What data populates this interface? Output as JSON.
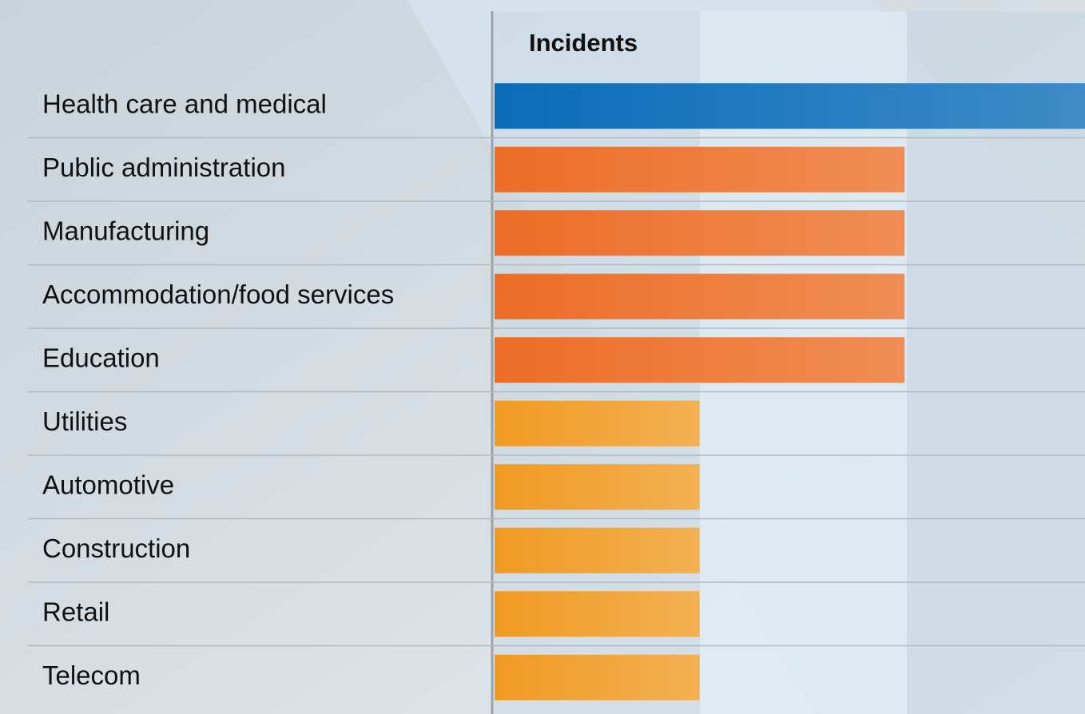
{
  "chart_data": {
    "type": "bar",
    "orientation": "horizontal",
    "title": "Incidents",
    "categories": [
      "Health care and medical",
      "Public administration",
      "Manufacturing",
      "Accommodation/food services",
      "Education",
      "Utilities",
      "Automotive",
      "Construction",
      "Retail",
      "Telecom"
    ],
    "values": [
      3,
      2,
      2,
      2,
      2,
      1,
      1,
      1,
      1,
      1
    ],
    "colors": [
      "#0a6cb8",
      "#ec6d25",
      "#ec6d25",
      "#ec6d25",
      "#ec6d25",
      "#f09a22",
      "#f09a22",
      "#f09a22",
      "#f09a22",
      "#f09a22"
    ],
    "xlim": [
      0,
      2.88
    ]
  }
}
